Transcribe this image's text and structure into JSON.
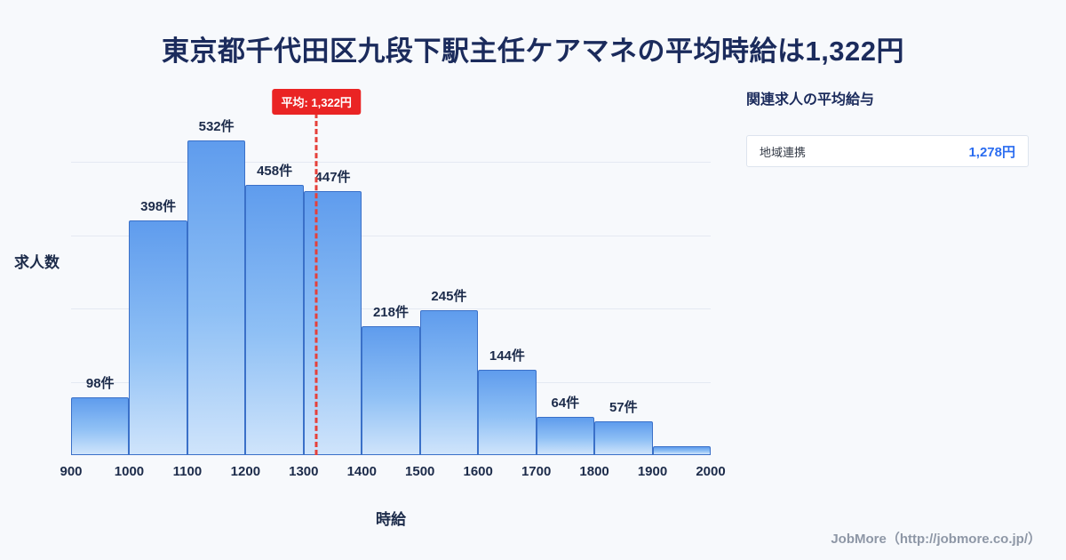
{
  "title": "東京都千代田区九段下駅主任ケアマネの平均時給は1,322円",
  "chart_data": {
    "type": "bar",
    "title": "東京都千代田区九段下駅主任ケアマネの時給分布",
    "xlabel": "時給",
    "ylabel": "求人数",
    "x_min": 900,
    "x_max": 2000,
    "bin_width": 100,
    "x_ticks": [
      "900",
      "1000",
      "1100",
      "1200",
      "1300",
      "1400",
      "1500",
      "1600",
      "1700",
      "1800",
      "1900",
      "2000"
    ],
    "values": [
      98,
      398,
      532,
      458,
      447,
      218,
      245,
      144,
      64,
      57,
      15
    ],
    "labels": [
      "98件",
      "398件",
      "532件",
      "458件",
      "447件",
      "218件",
      "245件",
      "144件",
      "64件",
      "57件",
      ""
    ],
    "ylim": [
      0,
      620
    ],
    "grid": "horizontal",
    "average": {
      "value": 1322,
      "x": 1322,
      "label": "平均: 1,322円"
    }
  },
  "side_panel": {
    "heading": "関連求人の平均給与",
    "rows": [
      {
        "label": "地域連携",
        "value": "1,278円"
      }
    ]
  },
  "footer": {
    "credit": "JobMore（http://jobmore.co.jp/）"
  },
  "colors": {
    "background": "#f7f9fc",
    "title_navy": "#1b2b5c",
    "bar_border": "#3a70c8",
    "bar_fill_top": "#5f9ced",
    "bar_fill_bottom": "#cfe4fb",
    "average_red": "#ea2424",
    "value_blue": "#2a6cf0",
    "footer_gray": "#8e97a6"
  }
}
